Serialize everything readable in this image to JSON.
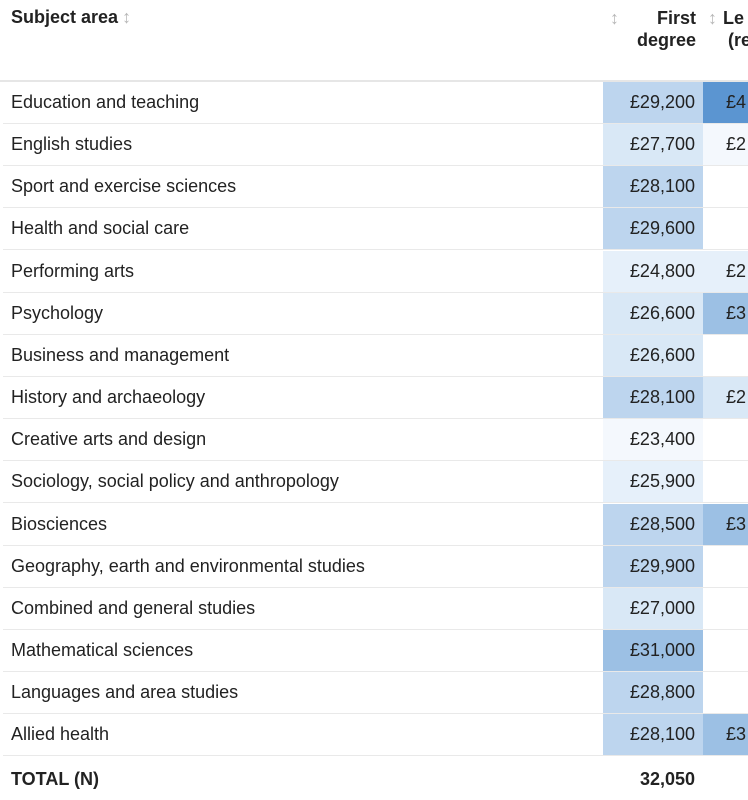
{
  "header": {
    "subject_label": "Subject area",
    "first_label_line1": "First",
    "first_label_line2": "degree",
    "next_label_line1": "Le",
    "next_label_line2": "(re",
    "sort_icon": "sort-icon"
  },
  "colors": {
    "shade_darkest": "#5b95d1",
    "shade_dark": "#9cc0e4",
    "shade_mid": "#bdd5ee",
    "shade_light": "#d9e8f6",
    "shade_lighter": "#e6f0fa",
    "shade_lightest": "#f4f8fd"
  },
  "rows": [
    {
      "subject": "Education and teaching",
      "first": "£29,200",
      "next": "£4",
      "first_shade": "mid",
      "next_shade": "darkest"
    },
    {
      "subject": "English studies",
      "first": "£27,700",
      "next": "£2",
      "first_shade": "light",
      "next_shade": "lightest"
    },
    {
      "subject": "Sport and exercise sciences",
      "first": "£28,100",
      "next": "",
      "first_shade": "mid",
      "next_shade": "none"
    },
    {
      "subject": "Health and social care",
      "first": "£29,600",
      "next": "",
      "first_shade": "mid",
      "next_shade": "none"
    },
    {
      "subject": "Performing arts",
      "first": "£24,800",
      "next": "£2",
      "first_shade": "lighter",
      "next_shade": "lighter"
    },
    {
      "subject": "Psychology",
      "first": "£26,600",
      "next": "£3",
      "first_shade": "light",
      "next_shade": "dark"
    },
    {
      "subject": "Business and management",
      "first": "£26,600",
      "next": "",
      "first_shade": "light",
      "next_shade": "none"
    },
    {
      "subject": "History and archaeology",
      "first": "£28,100",
      "next": "£2",
      "first_shade": "mid",
      "next_shade": "light"
    },
    {
      "subject": "Creative arts and design",
      "first": "£23,400",
      "next": "",
      "first_shade": "lightest",
      "next_shade": "none"
    },
    {
      "subject": "Sociology, social policy and anthropology",
      "first": "£25,900",
      "next": "",
      "first_shade": "lighter",
      "next_shade": "none"
    },
    {
      "subject": "Biosciences",
      "first": "£28,500",
      "next": "£3",
      "first_shade": "mid",
      "next_shade": "dark"
    },
    {
      "subject": "Geography, earth and environmental studies",
      "first": "£29,900",
      "next": "",
      "first_shade": "mid",
      "next_shade": "none"
    },
    {
      "subject": "Combined and general studies",
      "first": "£27,000",
      "next": "",
      "first_shade": "light",
      "next_shade": "none"
    },
    {
      "subject": "Mathematical sciences",
      "first": "£31,000",
      "next": "",
      "first_shade": "dark",
      "next_shade": "none"
    },
    {
      "subject": "Languages and area studies",
      "first": "£28,800",
      "next": "",
      "first_shade": "mid",
      "next_shade": "none"
    },
    {
      "subject": "Allied health",
      "first": "£28,100",
      "next": "£3",
      "first_shade": "mid",
      "next_shade": "dark"
    }
  ],
  "total": {
    "label": "TOTAL (N)",
    "first": "32,050"
  }
}
